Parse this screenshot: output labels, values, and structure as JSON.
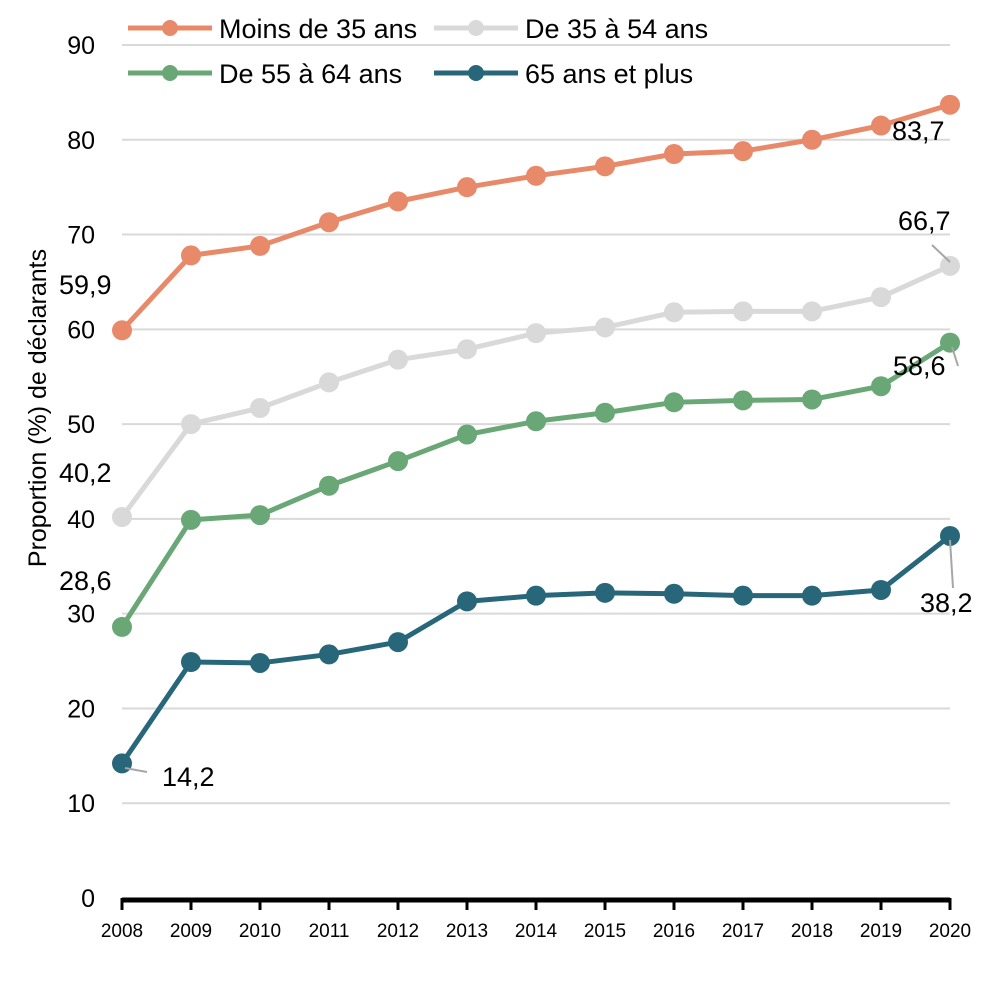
{
  "chart_data": {
    "type": "line",
    "title": "",
    "xlabel": "",
    "ylabel": "Proportion (%) de déclarants",
    "ylim": [
      0,
      90
    ],
    "yticks": [
      0,
      10,
      20,
      30,
      40,
      50,
      60,
      70,
      80,
      90
    ],
    "grid": true,
    "legend_position": "top",
    "x": [
      "2008",
      "2009",
      "2010",
      "2011",
      "2012",
      "2013",
      "2014",
      "2015",
      "2016",
      "2017",
      "2018",
      "2019",
      "2020"
    ],
    "series": [
      {
        "name": "Moins de 35 ans",
        "color": "#E8896A",
        "values": [
          59.9,
          67.8,
          68.8,
          71.3,
          73.5,
          75.0,
          76.2,
          77.2,
          78.5,
          78.8,
          80.0,
          81.5,
          83.7
        ],
        "labels": {
          "first": "59,9",
          "last": "83,7"
        }
      },
      {
        "name": "De 35 à 54 ans",
        "color": "#D9D9D9",
        "values": [
          40.2,
          50.0,
          51.7,
          54.4,
          56.8,
          57.9,
          59.6,
          60.2,
          61.8,
          61.9,
          61.9,
          63.4,
          66.7
        ],
        "labels": {
          "first": "40,2",
          "last": "66,7"
        }
      },
      {
        "name": "De 55 à 64 ans",
        "color": "#6AA776",
        "values": [
          28.6,
          39.9,
          40.4,
          43.5,
          46.1,
          48.9,
          50.3,
          51.2,
          52.3,
          52.5,
          52.6,
          54.0,
          58.6
        ],
        "labels": {
          "first": "28,6",
          "last": "58,6"
        }
      },
      {
        "name": "65 ans et plus",
        "color": "#28677A",
        "values": [
          14.2,
          24.9,
          24.8,
          25.7,
          27.0,
          31.3,
          31.9,
          32.2,
          32.1,
          31.9,
          31.9,
          32.5,
          38.2
        ],
        "labels": {
          "first": "14,2",
          "last": "38,2"
        }
      }
    ]
  }
}
